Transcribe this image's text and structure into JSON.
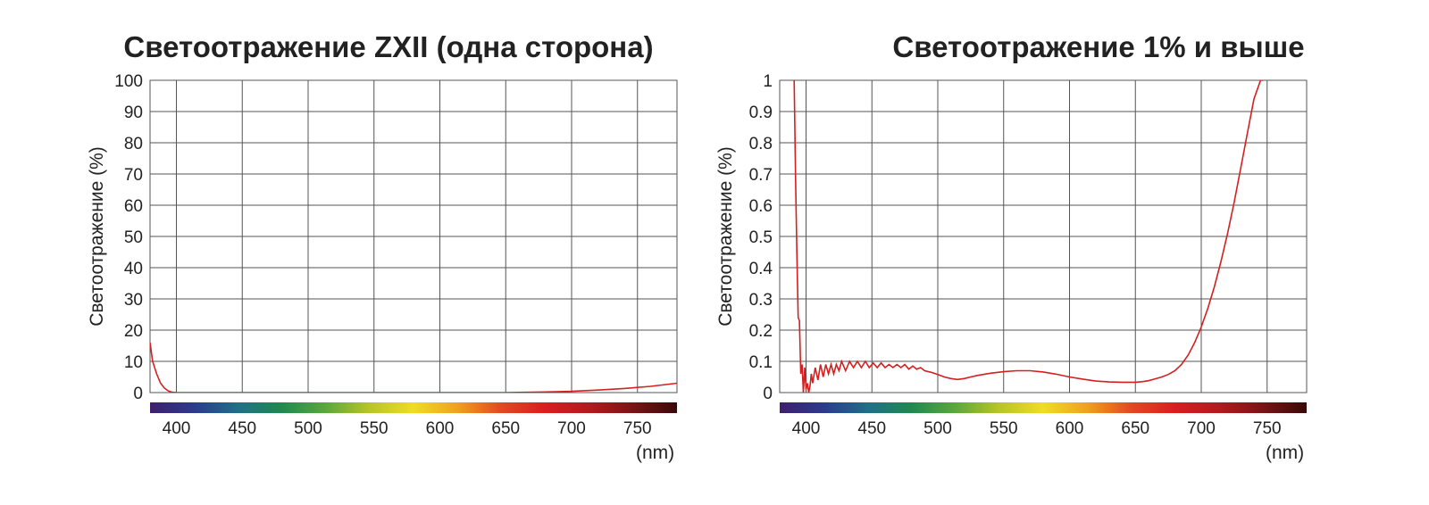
{
  "chart_data": [
    {
      "type": "line",
      "title": "Светоотражение ZXII (одна сторона)",
      "xlabel": "(nm)",
      "ylabel": "Светоотражение (%)",
      "xlim": [
        380,
        780
      ],
      "ylim": [
        0,
        100
      ],
      "xticks": [
        "400",
        "450",
        "500",
        "550",
        "600",
        "650",
        "700",
        "750"
      ],
      "yticks": [
        "0",
        "10",
        "20",
        "30",
        "40",
        "50",
        "60",
        "70",
        "80",
        "90",
        "100"
      ],
      "grid": true,
      "color": "#d42020",
      "series": [
        {
          "x": [
            380,
            382,
            385,
            388,
            391,
            394,
            397,
            400,
            410,
            450,
            500,
            550,
            600,
            650,
            680,
            700,
            720,
            740,
            760,
            780
          ],
          "y": [
            16,
            10,
            6,
            3,
            1.4,
            0.5,
            0.1,
            0,
            0,
            0,
            0,
            0,
            0,
            0,
            0.2,
            0.4,
            0.8,
            1.3,
            2.0,
            3.0
          ]
        }
      ]
    },
    {
      "type": "line",
      "title": "Светоотражение 1% и выше",
      "xlabel": "(nm)",
      "ylabel": "Светоотражение (%)",
      "xlim": [
        380,
        780
      ],
      "ylim": [
        0,
        1
      ],
      "xticks": [
        "400",
        "450",
        "500",
        "550",
        "600",
        "650",
        "700",
        "750"
      ],
      "yticks": [
        "0",
        "0.1",
        "0.2",
        "0.3",
        "0.4",
        "0.5",
        "0.6",
        "0.7",
        "0.8",
        "0.9",
        "1"
      ],
      "grid": true,
      "color": "#d42020",
      "series": [
        {
          "x": [
            391,
            392,
            393,
            394,
            395,
            396,
            397,
            398,
            399,
            400,
            401,
            402,
            403,
            404,
            405,
            407,
            409,
            411,
            413,
            415,
            417,
            419,
            421,
            423,
            425,
            427,
            430,
            433,
            436,
            439,
            442,
            445,
            448,
            451,
            454,
            457,
            460,
            463,
            466,
            469,
            472,
            475,
            478,
            481,
            484,
            487,
            490,
            495,
            500,
            505,
            510,
            515,
            520,
            525,
            530,
            540,
            550,
            560,
            570,
            580,
            590,
            600,
            610,
            620,
            630,
            640,
            650,
            655,
            660,
            665,
            670,
            675,
            680,
            685,
            690,
            695,
            700,
            705,
            710,
            715,
            720,
            725,
            730,
            735,
            740,
            745,
            747
          ],
          "y": [
            1.0,
            0.7,
            0.45,
            0.24,
            0.23,
            0.06,
            0.09,
            0.0,
            0.08,
            0.01,
            0.03,
            0.0,
            0.02,
            0.06,
            0.03,
            0.08,
            0.04,
            0.09,
            0.05,
            0.09,
            0.06,
            0.09,
            0.06,
            0.09,
            0.07,
            0.1,
            0.07,
            0.1,
            0.08,
            0.1,
            0.08,
            0.1,
            0.08,
            0.095,
            0.08,
            0.095,
            0.08,
            0.09,
            0.08,
            0.09,
            0.08,
            0.09,
            0.075,
            0.085,
            0.075,
            0.08,
            0.07,
            0.065,
            0.058,
            0.05,
            0.045,
            0.042,
            0.045,
            0.05,
            0.055,
            0.062,
            0.067,
            0.07,
            0.07,
            0.066,
            0.059,
            0.05,
            0.043,
            0.037,
            0.034,
            0.033,
            0.033,
            0.035,
            0.038,
            0.044,
            0.05,
            0.058,
            0.07,
            0.09,
            0.12,
            0.16,
            0.21,
            0.27,
            0.34,
            0.42,
            0.51,
            0.61,
            0.72,
            0.83,
            0.94,
            1.0,
            1.0
          ]
        }
      ]
    }
  ],
  "spectrum_colors": [
    "#3f1f6e",
    "#2b3a8e",
    "#1e6f8a",
    "#1d8a4e",
    "#5aa83a",
    "#b8c42a",
    "#f0dc24",
    "#f0a020",
    "#e04a20",
    "#d81e1e",
    "#b01c1c",
    "#7a1414",
    "#3a0808"
  ]
}
